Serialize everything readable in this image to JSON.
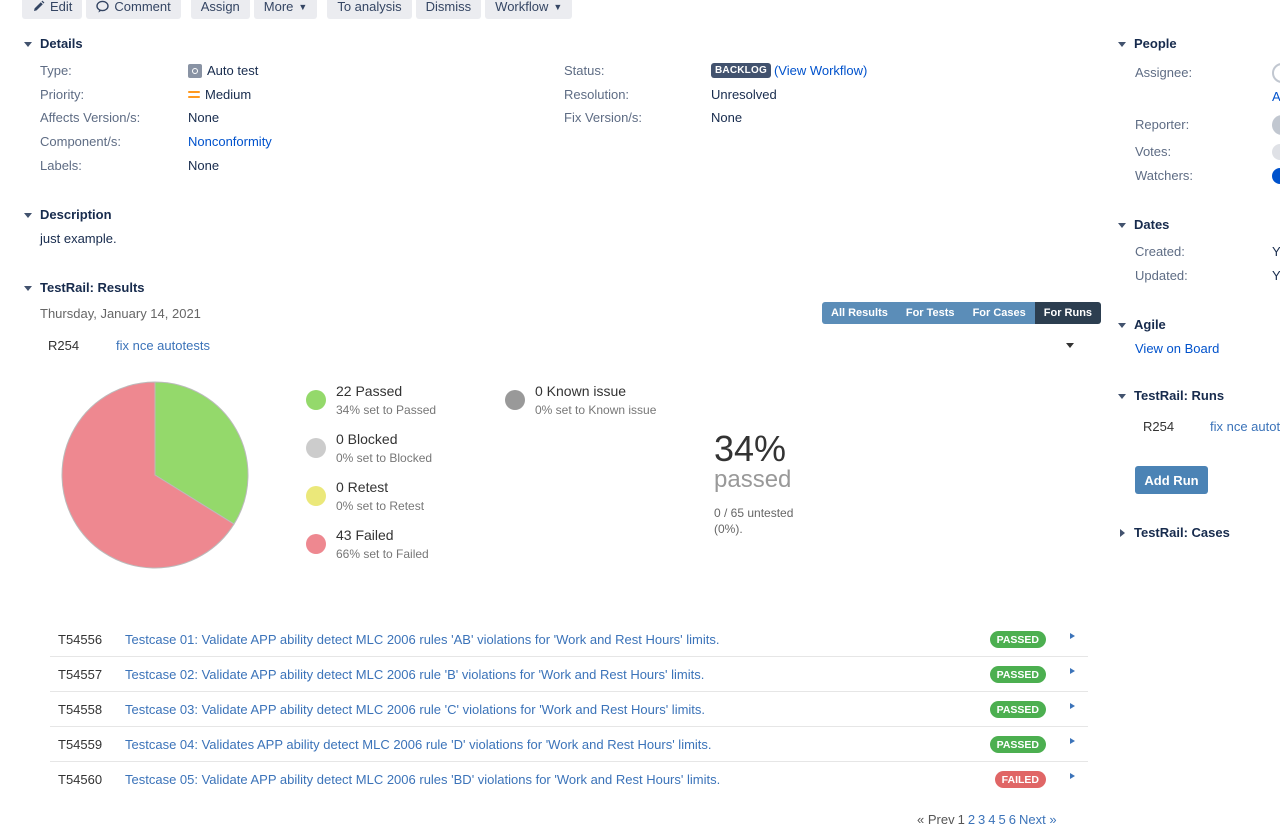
{
  "toolbar": {
    "edit": "Edit",
    "comment": "Comment",
    "assign": "Assign",
    "more": "More",
    "to_analysis": "To analysis",
    "dismiss": "Dismiss",
    "workflow": "Workflow"
  },
  "details": {
    "heading": "Details",
    "type_label": "Type:",
    "type_value": "Auto test",
    "priority_label": "Priority:",
    "priority_value": "Medium",
    "affects_label": "Affects Version/s:",
    "affects_value": "None",
    "component_label": "Component/s:",
    "component_value": "Nonconformity",
    "labels_label": "Labels:",
    "labels_value": "None",
    "status_label": "Status:",
    "status_value": "BACKLOG",
    "status_link": "(View Workflow)",
    "resolution_label": "Resolution:",
    "resolution_value": "Unresolved",
    "fix_label": "Fix Version/s:",
    "fix_value": "None"
  },
  "description": {
    "heading": "Description",
    "text": "just example."
  },
  "testrail": {
    "heading": "TestRail: Results",
    "date": "Thursday, January 14, 2021",
    "tabs": [
      "All Results",
      "For Tests",
      "For Cases",
      "For Runs"
    ],
    "active_tab": "For Runs",
    "run_id": "R254",
    "run_name": "fix nce autotests",
    "legend": [
      {
        "title": "22 Passed",
        "sub": "34% set to Passed",
        "color": "#94d96b"
      },
      {
        "title": "0 Blocked",
        "sub": "0% set to Blocked",
        "color": "#cccccc"
      },
      {
        "title": "0 Retest",
        "sub": "0% set to Retest",
        "color": "#ebe87a"
      },
      {
        "title": "43 Failed",
        "sub": "66% set to Failed",
        "color": "#ee8890"
      },
      {
        "title": "0 Known issue",
        "sub": "0% set to Known issue",
        "color": "#999999"
      }
    ],
    "pass_pct": "34%",
    "pass_word": "passed",
    "untested": "0 / 65 untested (0%).",
    "results": [
      {
        "id": "T54556",
        "title": "Testcase 01: Validate APP ability detect MLC 2006 rules 'AB' violations for 'Work and Rest Hours' limits.",
        "status": "PASSED"
      },
      {
        "id": "T54557",
        "title": "Testcase 02: Validate APP ability detect MLC 2006 rule 'B' violations for 'Work and Rest Hours' limits.",
        "status": "PASSED"
      },
      {
        "id": "T54558",
        "title": "Testcase 03: Validate APP ability detect MLC 2006 rule 'C' violations for 'Work and Rest Hours' limits.",
        "status": "PASSED"
      },
      {
        "id": "T54559",
        "title": "Testcase 04: Validates APP ability detect MLC 2006 rule 'D' violations for 'Work and Rest Hours' limits.",
        "status": "PASSED"
      },
      {
        "id": "T54560",
        "title": "Testcase 05: Validate APP ability detect MLC 2006 rules 'BD' violations for 'Work and Rest Hours' limits.",
        "status": "FAILED"
      }
    ],
    "pager": {
      "prev": "« Prev",
      "pages": [
        "1",
        "2",
        "3",
        "4",
        "5",
        "6"
      ],
      "next": "Next »"
    }
  },
  "chart_data": {
    "type": "pie",
    "categories": [
      "Passed",
      "Failed"
    ],
    "values": [
      22,
      43
    ],
    "colors": [
      "#94d96b",
      "#ee8890"
    ]
  },
  "sidebar": {
    "people_heading": "People",
    "assignee_label": "Assignee:",
    "assignee_value": "A",
    "reporter_label": "Reporter:",
    "votes_label": "Votes:",
    "watchers_label": "Watchers:",
    "dates_heading": "Dates",
    "created_label": "Created:",
    "created_value": "Y",
    "updated_label": "Updated:",
    "updated_value": "Y",
    "agile_heading": "Agile",
    "agile_link": "View on Board",
    "runs_heading": "TestRail: Runs",
    "run_id": "R254",
    "run_name": "fix nce autot",
    "add_run": "Add Run",
    "cases_heading": "TestRail: Cases"
  }
}
